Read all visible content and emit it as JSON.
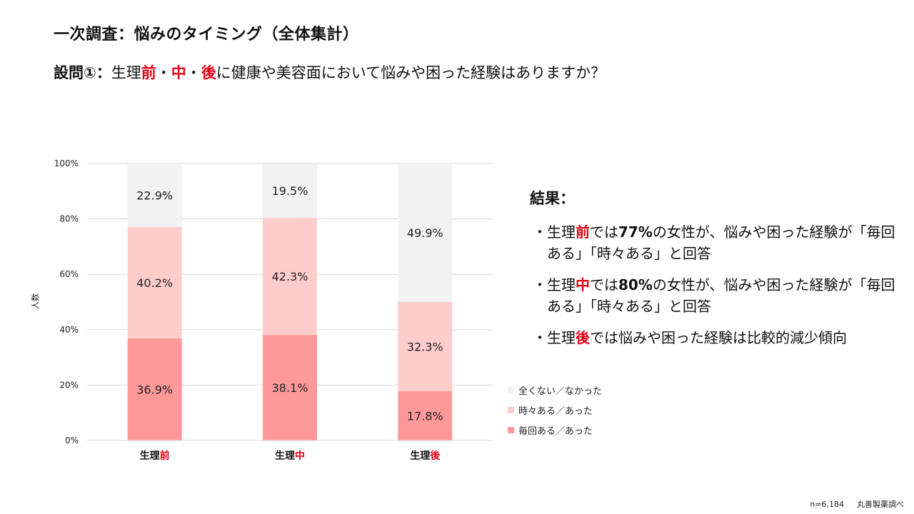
{
  "title": "一次調査：悩みのタイミング（全体集計）",
  "question": {
    "lead": "設問①：",
    "pre": "生理",
    "t1": "前",
    "sep1": "・",
    "t2": "中",
    "sep2": "・",
    "t3": "後",
    "tail": "に健康や美容面において悩みや困った経験はありますか？"
  },
  "chart_data": {
    "type": "bar",
    "stacked": true,
    "ylabel": "人数",
    "ylim": [
      0,
      100
    ],
    "yticks": [
      "0%",
      "20%",
      "40%",
      "60%",
      "80%",
      "100%"
    ],
    "categories": [
      {
        "prefix": "生理",
        "suffix": "前"
      },
      {
        "prefix": "生理",
        "suffix": "中"
      },
      {
        "prefix": "生理",
        "suffix": "後"
      }
    ],
    "series": [
      {
        "name": "毎回ある／あった",
        "color": "#ff9999",
        "values": [
          36.9,
          38.1,
          17.8
        ],
        "labels": [
          "36.9%",
          "38.1%",
          "17.8%"
        ]
      },
      {
        "name": "時々ある／あった",
        "color": "#ffcccc",
        "values": [
          40.2,
          42.3,
          32.3
        ],
        "labels": [
          "40.2%",
          "42.3%",
          "32.3%"
        ]
      },
      {
        "name": "全くない／なかった",
        "color": "#f2f2f2",
        "values": [
          22.9,
          19.5,
          49.9
        ],
        "labels": [
          "22.9%",
          "19.5%",
          "49.9%"
        ]
      }
    ],
    "grid": true,
    "legend": "right"
  },
  "legend": [
    {
      "label": "全くない／なかった",
      "color": "#f2f2f2"
    },
    {
      "label": "時々ある／あった",
      "color": "#ffcccc"
    },
    {
      "label": "毎回ある／あった",
      "color": "#ff9999"
    }
  ],
  "results": {
    "heading": "結果：",
    "bullet": "・",
    "items": [
      {
        "pre": "生理",
        "red": "前",
        "mid": "では",
        "pct": "77%",
        "post": "の女性が、悩みや困った経験が「毎回ある」「時々ある」と回答"
      },
      {
        "pre": "生理",
        "red": "中",
        "mid": "では",
        "pct": "80%",
        "post": "の女性が、悩みや困った経験が「毎回ある」「時々ある」と回答"
      },
      {
        "pre": "生理",
        "red": "後",
        "mid": "では",
        "pct": "",
        "post": "悩みや困った経験は比較的減少傾向"
      }
    ]
  },
  "footnote": {
    "n": "n=6,184",
    "source": "丸善製薬調べ"
  },
  "colors": {
    "accent_red": "#e60012",
    "grid": "#d9d9d9",
    "axis_text": "#222222"
  }
}
